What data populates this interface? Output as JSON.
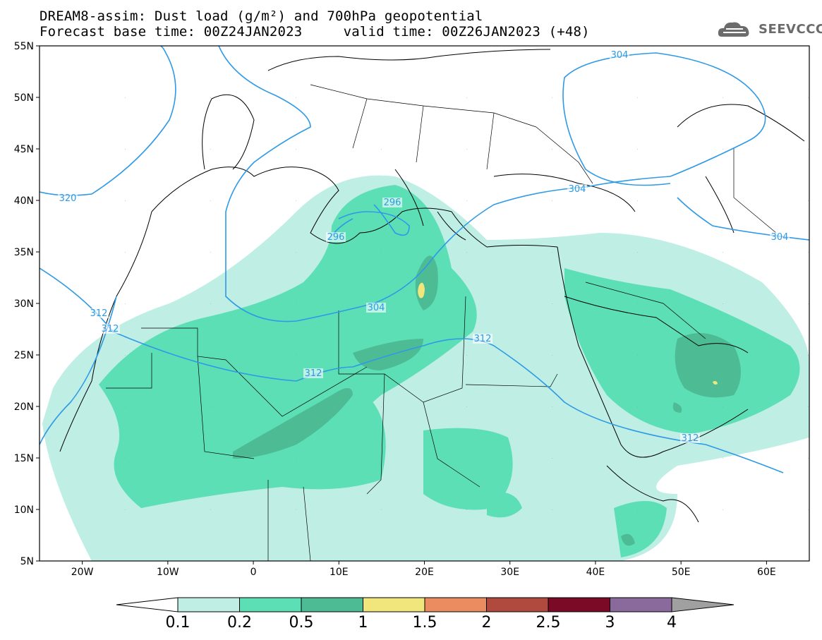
{
  "header": {
    "line1": "DREAM8-assim: Dust load (g/m²) and 700hPa geopotential",
    "line2": "Forecast base time: 00Z24JAN2023     valid time: 00Z26JAN2023 (+48)"
  },
  "logo": {
    "text": "SEEVCCC",
    "icon": "cloud-icon"
  },
  "map": {
    "extent": {
      "lon": [
        -25,
        65
      ],
      "lat": [
        5,
        55
      ]
    },
    "lat_labels": [
      "5N",
      "10N",
      "15N",
      "20N",
      "25N",
      "30N",
      "35N",
      "40N",
      "45N",
      "50N",
      "55N"
    ],
    "lon_labels": [
      "20W",
      "10W",
      "0",
      "10E",
      "20E",
      "30E",
      "40E",
      "50E",
      "60E"
    ],
    "contour_labels": [
      "320",
      "312",
      "312",
      "304",
      "312",
      "312",
      "296",
      "296",
      "304",
      "304",
      "304",
      "312"
    ],
    "colorbar": {
      "labels": [
        "0.1",
        "0.2",
        "0.5",
        "1",
        "1.5",
        "2",
        "2.5",
        "3",
        "4"
      ],
      "colors": [
        "#ffffff",
        "#bfeee5",
        "#5ddfb6",
        "#4dbc94",
        "#f1e67c",
        "#ea8c5f",
        "#b04a3e",
        "#7a0a25",
        "#8a6a9c",
        "#a0a0a0"
      ]
    }
  }
}
